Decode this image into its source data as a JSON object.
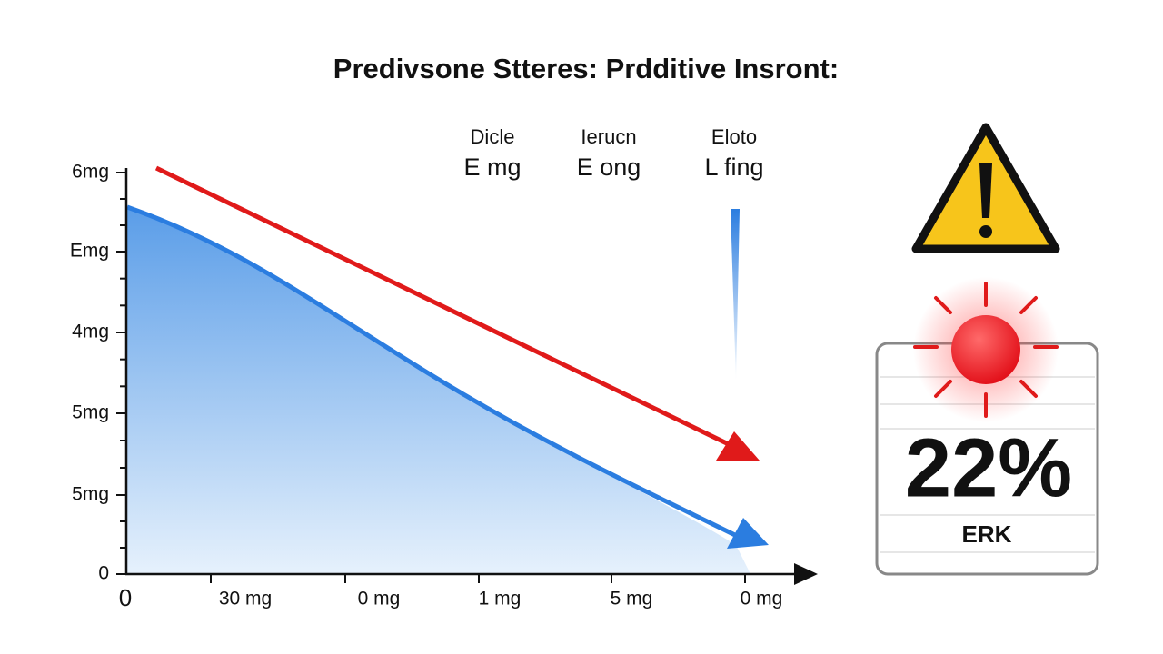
{
  "title": "Predivsone Stteres: Prdditive Insront:",
  "y_axis_labels": [
    "6mg",
    "Emg",
    "4mg",
    "5mg",
    "5mg",
    "0"
  ],
  "x_axis_labels": [
    "0",
    "30 mg",
    "0 mg",
    "1 mg",
    "5 mg",
    "0 mg"
  ],
  "legend": [
    {
      "heading": "Dicle",
      "value": "E mg"
    },
    {
      "heading": "Ierucn",
      "value": "E ong"
    },
    {
      "heading": "Eloto",
      "value": "L fing"
    }
  ],
  "panel": {
    "value": "22%",
    "label": "ERK"
  }
}
